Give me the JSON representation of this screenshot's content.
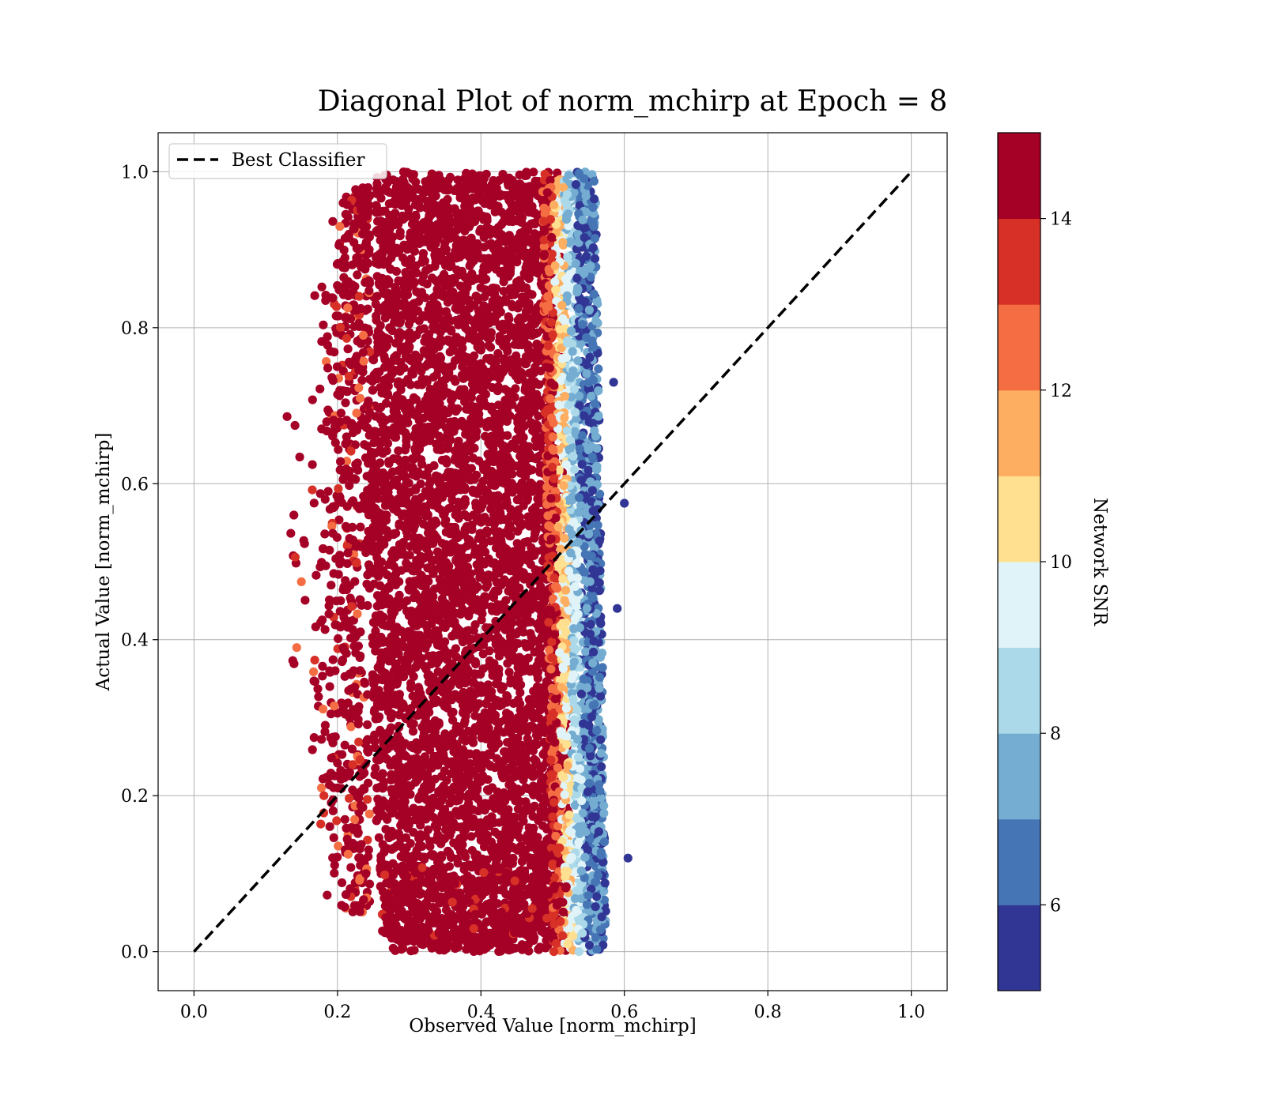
{
  "chart_data": {
    "type": "scatter",
    "title": "Diagonal Plot of norm_mchirp at Epoch = 8",
    "xlabel": "Observed Value [norm_mchirp]",
    "ylabel": "Actual Value [norm_mchirp]",
    "xlim": [
      -0.05,
      1.05
    ],
    "ylim": [
      -0.05,
      1.05
    ],
    "x_ticks": [
      "0.0",
      "0.2",
      "0.4",
      "0.6",
      "0.8",
      "1.0"
    ],
    "y_ticks": [
      "0.0",
      "0.2",
      "0.4",
      "0.6",
      "0.8",
      "1.0"
    ],
    "grid": true,
    "legend": {
      "position": "top-left",
      "entries": [
        "Best Classifier"
      ]
    },
    "reference_line": {
      "name": "Best Classifier",
      "x": [
        0.0,
        1.0
      ],
      "y": [
        0.0,
        1.0
      ],
      "style": "dashed",
      "color": "#000000"
    },
    "colorbar": {
      "label": "Network SNR",
      "range": [
        5,
        15
      ],
      "ticks": [
        "6",
        "8",
        "10",
        "12",
        "14"
      ],
      "tick_values": [
        6,
        8,
        10,
        12,
        14
      ],
      "colors": [
        "#313695",
        "#4575b4",
        "#74add1",
        "#abd9e9",
        "#e0f3f8",
        "#fee090",
        "#fdae61",
        "#f46d43",
        "#d73027",
        "#a50026"
      ]
    },
    "series": {
      "point_count_approx": 120000,
      "x_range": [
        0.15,
        0.61
      ],
      "y_range": [
        0.0,
        1.0
      ],
      "x_mean": 0.38,
      "color_by": "Network SNR",
      "high_snr_band_x": [
        0.22,
        0.52
      ],
      "low_snr_band_x": [
        0.52,
        0.61
      ]
    }
  }
}
